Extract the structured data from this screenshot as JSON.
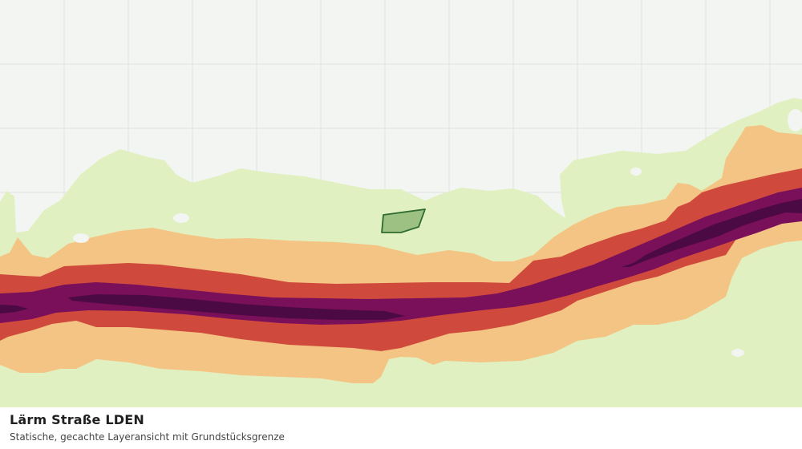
{
  "map": {
    "basemap_color": "#f3f5f2",
    "grid_color": "#dfe3df",
    "noise_layer": {
      "name": "Lärm Straße LDEN",
      "band_colors": [
        "#e1f0c1",
        "#f4c484",
        "#cf4a3c",
        "#7a0f5a",
        "#4c0a45"
      ]
    },
    "parcel": {
      "fill_color": "#9dc083",
      "stroke_color": "#2e6b2e"
    }
  },
  "caption": {
    "title": "Lärm Straße LDEN",
    "subtitle": "Statische, gecachte Layeransicht mit Grundstücksgrenze"
  }
}
